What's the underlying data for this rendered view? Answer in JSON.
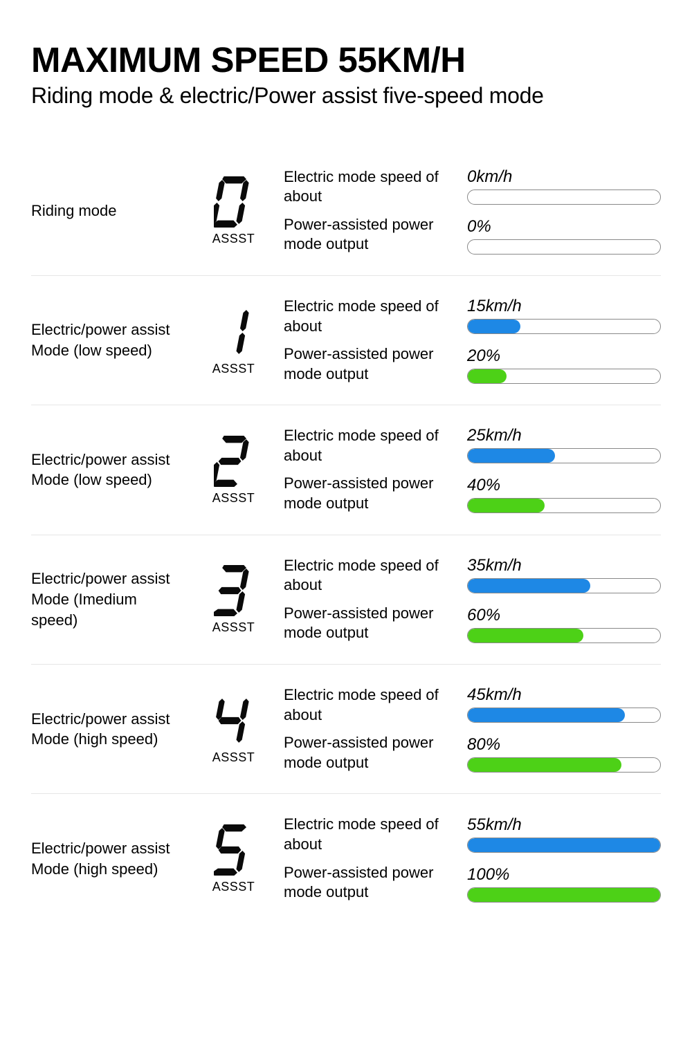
{
  "title": "MAXIMUM SPEED 55KM/H",
  "subtitle": "Riding mode & electric/Power assist five-speed mode",
  "assst_label": "ASSST",
  "label_speed": "Electric mode speed of about",
  "label_power": "Power-assisted power mode output",
  "colors": {
    "speed_bar": "#1e88e5",
    "power_bar": "#4dd117",
    "track_border": "#888888",
    "divider": "#e6e6e6",
    "text": "#000000",
    "background": "#ffffff",
    "digit": "#0a0a0a"
  },
  "digit_segments": {
    "0": [
      "a",
      "b",
      "c",
      "d",
      "e",
      "f"
    ],
    "1": [
      "b",
      "c"
    ],
    "2": [
      "a",
      "b",
      "g",
      "e",
      "d"
    ],
    "3": [
      "a",
      "b",
      "g",
      "c",
      "d"
    ],
    "4": [
      "f",
      "g",
      "b",
      "c"
    ],
    "5": [
      "a",
      "f",
      "g",
      "c",
      "d"
    ]
  },
  "max_speed_kmh": 55,
  "rows": [
    {
      "digit": "0",
      "name": "Riding mode",
      "speed_kmh": 0,
      "speed_label": "0km/h",
      "power_pct": 0,
      "power_label": "0%"
    },
    {
      "digit": "1",
      "name": "Electric/power assist Mode (low speed)",
      "speed_kmh": 15,
      "speed_label": "15km/h",
      "power_pct": 20,
      "power_label": "20%"
    },
    {
      "digit": "2",
      "name": "Electric/power assist Mode (low speed)",
      "speed_kmh": 25,
      "speed_label": "25km/h",
      "power_pct": 40,
      "power_label": "40%"
    },
    {
      "digit": "3",
      "name": "Electric/power assist Mode (Imedium speed)",
      "speed_kmh": 35,
      "speed_label": "35km/h",
      "power_pct": 60,
      "power_label": "60%"
    },
    {
      "digit": "4",
      "name": "Electric/power assist Mode (high speed)",
      "speed_kmh": 45,
      "speed_label": "45km/h",
      "power_pct": 80,
      "power_label": "80%"
    },
    {
      "digit": "5",
      "name": "Electric/power assist Mode (high speed)",
      "speed_kmh": 55,
      "speed_label": "55km/h",
      "power_pct": 100,
      "power_label": "100%"
    }
  ]
}
